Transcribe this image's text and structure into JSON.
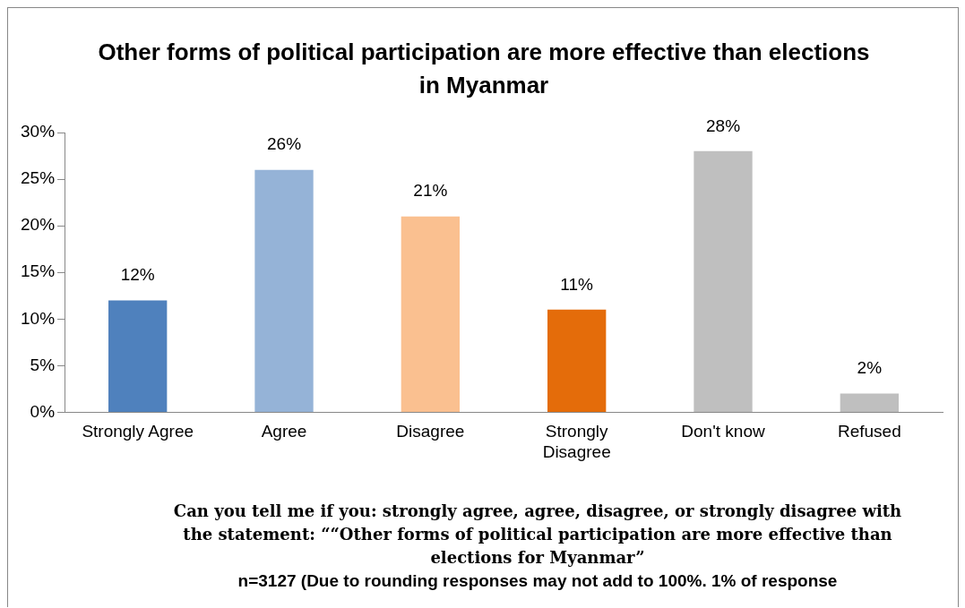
{
  "chart_data": {
    "type": "bar",
    "title": "Other forms of political participation are more effective than elections in Myanmar",
    "categories": [
      "Strongly Agree",
      "Agree",
      "Disagree",
      "Strongly Disagree",
      "Don't know",
      "Refused"
    ],
    "values": [
      12,
      26,
      21,
      11,
      28,
      2
    ],
    "colors": [
      "#4f81bd",
      "#95b3d7",
      "#fac090",
      "#e46c0a",
      "#bfbfbf",
      "#bfbfbf"
    ],
    "ylim": [
      0,
      30
    ],
    "yticks": [
      {
        "value": 0,
        "label": "0%"
      },
      {
        "value": 5,
        "label": "5%"
      },
      {
        "value": 10,
        "label": "10%"
      },
      {
        "value": 15,
        "label": "15%"
      },
      {
        "value": 20,
        "label": "20%"
      },
      {
        "value": 25,
        "label": "25%"
      },
      {
        "value": 30,
        "label": "30%"
      }
    ],
    "value_labels": [
      "12%",
      "26%",
      "21%",
      "11%",
      "28%",
      "2%"
    ],
    "grid": false,
    "legend": false,
    "annotations": [
      "Can you tell me if you: strongly agree, agree, disagree, or strongly disagree with the statement: ““Other forms of political participation are more effective than elections for Myanmar”",
      "n=3127 (Due to rounding responses may not add to 100%. 1% of response"
    ]
  }
}
